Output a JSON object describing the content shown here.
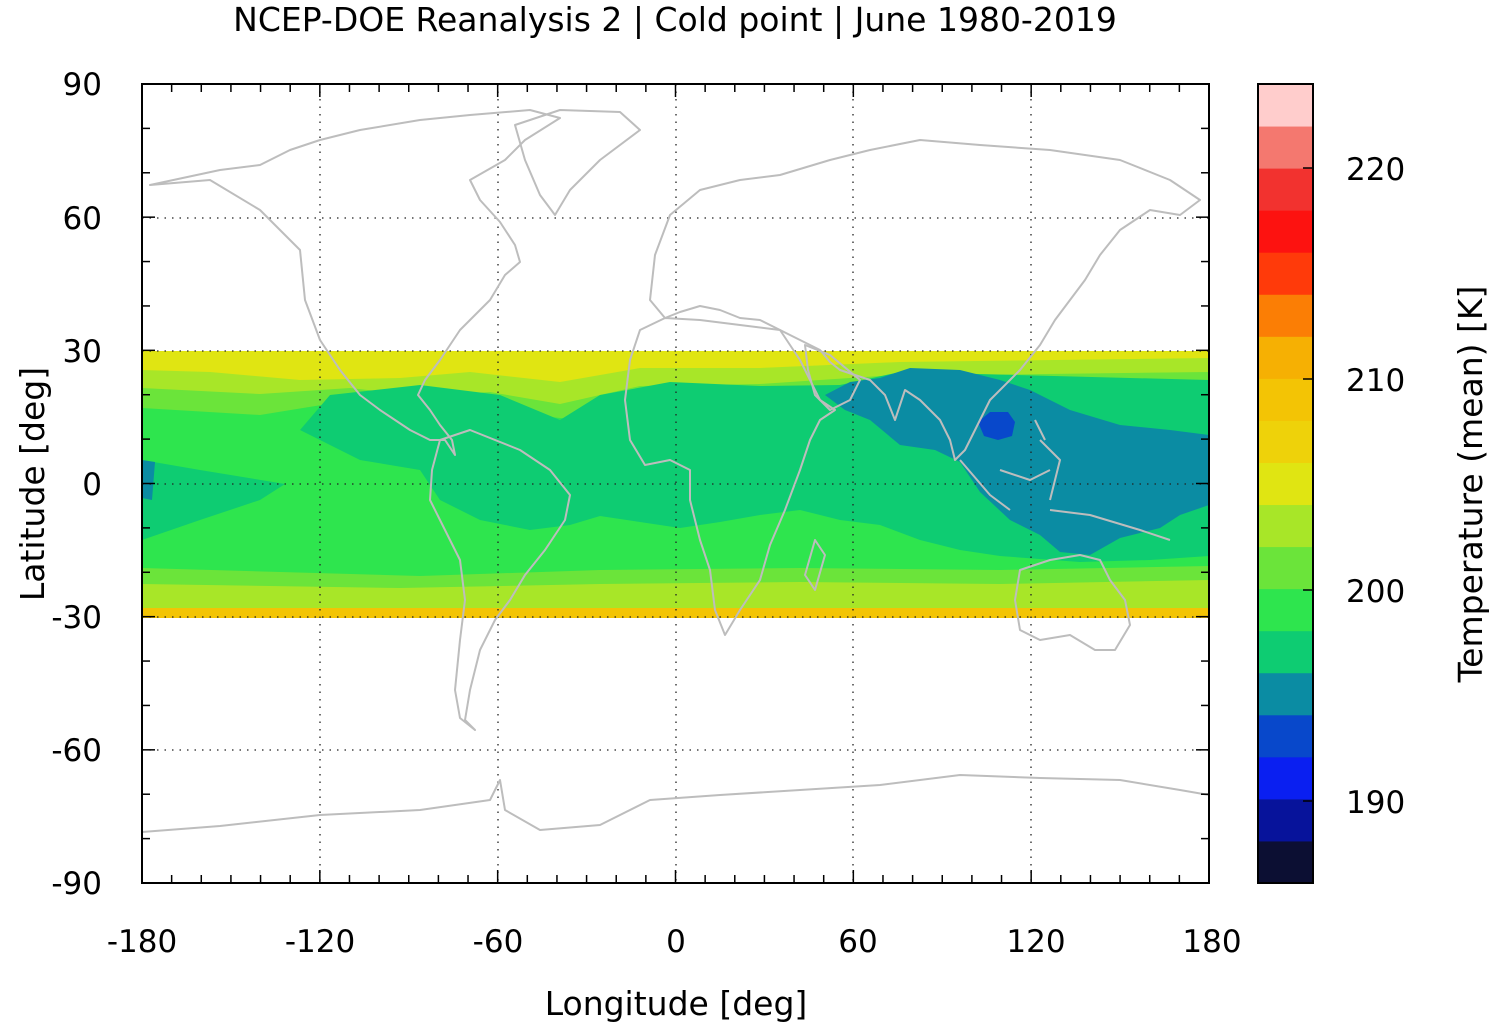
{
  "title": "NCEP-DOE Reanalysis 2 | Cold point | June 1980-2019",
  "x_axis": {
    "label": "Longitude [deg]",
    "ticks": [
      "-180",
      "-120",
      "-60",
      "0",
      "60",
      "120",
      "180"
    ],
    "range": [
      -180,
      180
    ]
  },
  "y_axis": {
    "label": "Latitude [deg]",
    "ticks": [
      "90",
      "60",
      "30",
      "0",
      "-30",
      "-60",
      "-90"
    ],
    "range": [
      -90,
      90
    ]
  },
  "colorbar": {
    "label": "Temperature (mean) [K]",
    "ticks": [
      "220",
      "210",
      "200",
      "190"
    ],
    "range": [
      186,
      223
    ],
    "colors": [
      "#0c0f33",
      "#07139b",
      "#0a1ff1",
      "#0848cb",
      "#0b8ca3",
      "#0ecc72",
      "#2ee54e",
      "#6be43a",
      "#a8e628",
      "#e0e512",
      "#eed20a",
      "#f3c405",
      "#f6b003",
      "#fb7e05",
      "#ff3a0a",
      "#fd1210",
      "#f2322f",
      "#f4786f",
      "#ffcdcc"
    ]
  },
  "chart_data": {
    "type": "heatmap",
    "title": "NCEP-DOE Reanalysis 2 | Cold point | June 1980-2019",
    "xlabel": "Longitude [deg]",
    "ylabel": "Latitude [deg]",
    "xlim": [
      -180,
      180
    ],
    "ylim": [
      -90,
      90
    ],
    "colorbar_label": "Temperature (mean) [K]",
    "colorbar_range": [
      186,
      223
    ],
    "data_extent": {
      "lat": [
        -30,
        30
      ],
      "lon": [
        -180,
        180
      ]
    },
    "grid": true,
    "overlay": "coastlines",
    "regions_approx_K": [
      {
        "region": "subtropical edges near 30S/30N",
        "value": 209
      },
      {
        "region": "south Pacific/Atlantic near 20S",
        "value": 204
      },
      {
        "region": "equatorial band",
        "value": 197
      },
      {
        "region": "Asian monsoon / western Pacific",
        "value": 195
      },
      {
        "region": "Indochina core near 105E 15N",
        "value": 192
      }
    ]
  }
}
